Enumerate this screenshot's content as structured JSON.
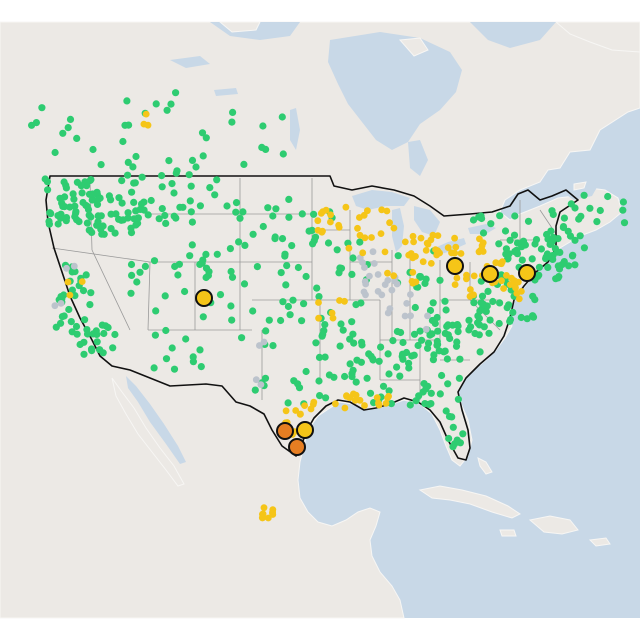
{
  "map": {
    "colors": {
      "background": "#ffffff",
      "water": "#c8d8e7",
      "land": "#ece9e5",
      "land_border": "#f7f6f4",
      "us_border": "#111111",
      "state_border": "#9a9a9a",
      "green": "#2ecc71",
      "yellow": "#f5c518",
      "gray": "#bcc3cc",
      "orange": "#e67e22",
      "marker_outline": "#111111"
    },
    "highlighted_sites": [
      {
        "id": "colorado",
        "color": "yellow"
      },
      {
        "id": "chicago",
        "color": "yellow"
      },
      {
        "id": "detroit",
        "color": "yellow"
      },
      {
        "id": "pennsylvania",
        "color": "yellow"
      },
      {
        "id": "texas-north",
        "color": "yellow"
      },
      {
        "id": "texas-west",
        "color": "orange"
      },
      {
        "id": "texas-south",
        "color": "orange"
      }
    ]
  }
}
